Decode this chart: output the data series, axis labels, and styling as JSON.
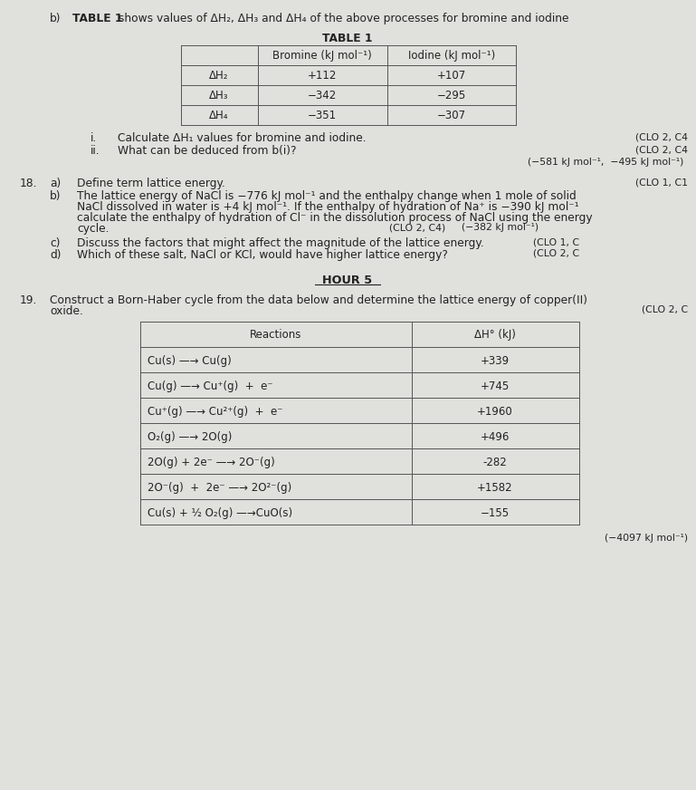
{
  "bg_color": "#cecece",
  "page_color": "#e8e8e5",
  "table1_rows": [
    [
      "ΔH₂",
      "+112",
      "+107"
    ],
    [
      "ΔH₃",
      "−342",
      "−295"
    ],
    [
      "ΔH₄",
      "−351",
      "−307"
    ]
  ],
  "table2_rows": [
    [
      "Cu(s) —→ Cu(g)",
      "+339"
    ],
    [
      "Cu(g) —→ Cu⁺(g)  +  e⁻",
      "+745"
    ],
    [
      "Cu⁺(g) —→ Cu²⁺(g)  +  e⁻",
      "+1960"
    ],
    [
      "O₂(g) —→ 2O(g)",
      "+496"
    ],
    [
      "2O(g) + 2e⁻ —→ 2O⁻(g)",
      "-282"
    ],
    [
      "2O⁻(g)  +  2e⁻ —→ 2O²⁻(g)",
      "+1582"
    ],
    [
      "Cu(s) + ½ O₂(g) —→CuO(s)",
      "−155"
    ]
  ],
  "fs_body": 8.8,
  "fs_small": 7.8,
  "fs_table": 8.5,
  "line_color": "#555555",
  "text_color": "#222222"
}
